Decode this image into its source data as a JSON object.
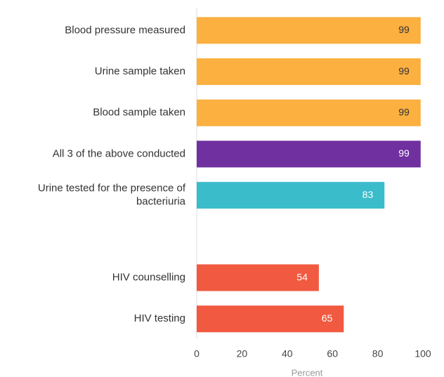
{
  "chart_data": {
    "type": "barh",
    "categories": [
      "Blood pressure measured",
      "Urine sample taken",
      "Blood sample taken",
      "All 3 of the above conducted",
      "Urine tested for the presence of bacteriuria",
      null,
      "HIV counselling",
      "HIV testing"
    ],
    "values": [
      99,
      99,
      99,
      99,
      83,
      null,
      54,
      65
    ],
    "colors": [
      "#fbb040",
      "#fbb040",
      "#fbb040",
      "#7030a0",
      "#3bbccb",
      null,
      "#f15a40",
      "#f15a40"
    ],
    "xlabel": "Percent",
    "xlim": [
      0,
      100
    ],
    "xticks": [
      0,
      20,
      40,
      60,
      80,
      100
    ],
    "grid": false
  }
}
